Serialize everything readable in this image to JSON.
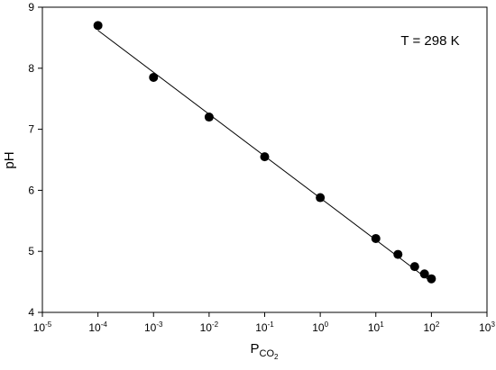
{
  "chart_data": {
    "type": "scatter",
    "xscale": "log",
    "xlabel": "P",
    "xlabel_sub": "CO",
    "xlabel_subsub": "2",
    "ylabel": "pH",
    "annotation": "T = 298 K",
    "xlim": [
      1e-05,
      1000
    ],
    "ylim": [
      4,
      9
    ],
    "x_ticks": [
      {
        "base": "10",
        "exp": "-5",
        "value": 1e-05
      },
      {
        "base": "10",
        "exp": "-4",
        "value": 0.0001
      },
      {
        "base": "10",
        "exp": "-3",
        "value": 0.001
      },
      {
        "base": "10",
        "exp": "-2",
        "value": 0.01
      },
      {
        "base": "10",
        "exp": "-1",
        "value": 0.1
      },
      {
        "base": "10",
        "exp": "0",
        "value": 1
      },
      {
        "base": "10",
        "exp": "1",
        "value": 10
      },
      {
        "base": "10",
        "exp": "2",
        "value": 100
      },
      {
        "base": "10",
        "exp": "3",
        "value": 1000
      }
    ],
    "y_ticks": [
      "4",
      "5",
      "6",
      "7",
      "8",
      "9"
    ],
    "grid": false,
    "legend": "none",
    "series": [
      {
        "x": [
          0.0001,
          0.001,
          0.01,
          0.1,
          1,
          10,
          25,
          50,
          75,
          100
        ],
        "y": [
          8.7,
          7.85,
          7.2,
          6.55,
          5.88,
          5.21,
          4.95,
          4.75,
          4.63,
          4.55
        ]
      }
    ],
    "fit_line": {
      "x": [
        0.0001,
        100
      ],
      "y": [
        8.62,
        4.5
      ]
    },
    "colors": {
      "marker": "#000000",
      "line": "#000000"
    }
  }
}
